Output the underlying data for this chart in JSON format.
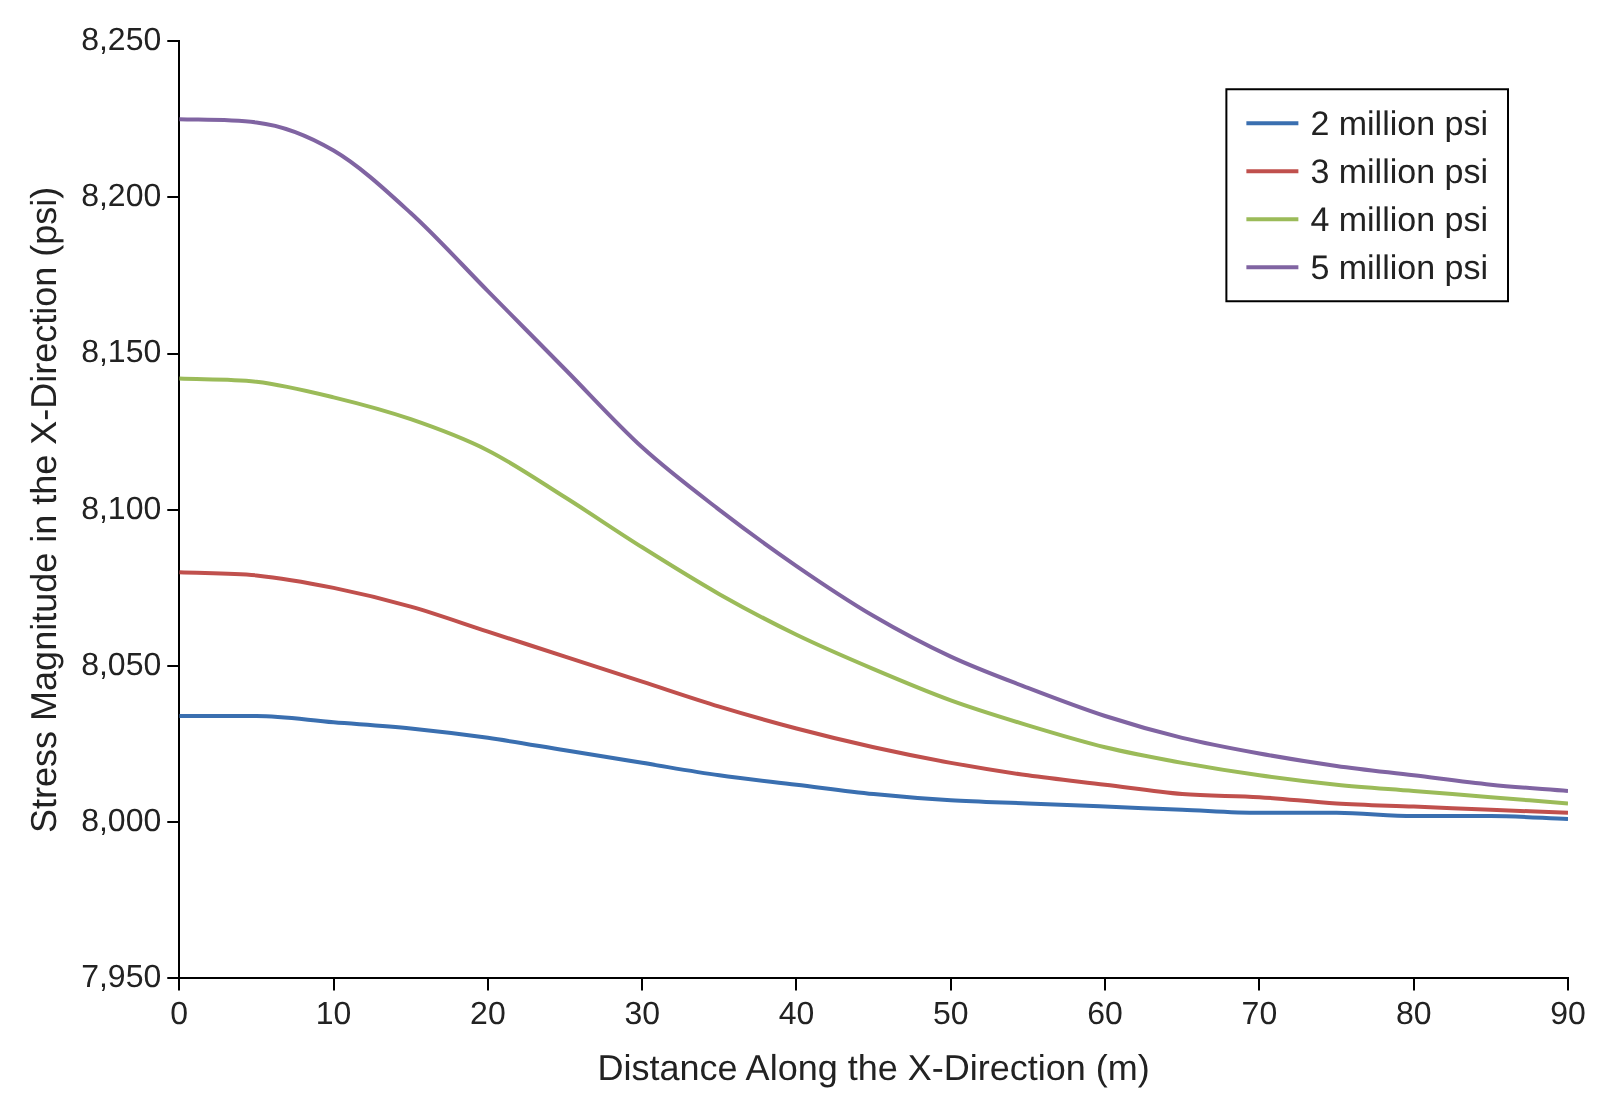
{
  "chart_data": {
    "type": "line",
    "xlabel": "Distance Along the X-Direction (m)",
    "ylabel": "Stress Magnitude in the X-Direction (psi)",
    "x": [
      0,
      5,
      10,
      15,
      20,
      25,
      30,
      35,
      40,
      45,
      50,
      55,
      60,
      65,
      70,
      75,
      80,
      85,
      90
    ],
    "series": [
      {
        "name": "2 million psi",
        "color": "#3a6fb0",
        "values": [
          8034,
          8034,
          8032,
          8030,
          8027,
          8023,
          8019,
          8015,
          8012,
          8009,
          8007,
          8006,
          8005,
          8004,
          8003,
          8003,
          8002,
          8002,
          8001
        ]
      },
      {
        "name": "3 million psi",
        "color": "#c0504d",
        "values": [
          8080,
          8079,
          8075,
          8069,
          8061,
          8053,
          8045,
          8037,
          8030,
          8024,
          8019,
          8015,
          8012,
          8009,
          8008,
          8006,
          8005,
          8004,
          8003
        ]
      },
      {
        "name": "4 million psi",
        "color": "#9bbb59",
        "values": [
          8142,
          8141,
          8136,
          8129,
          8119,
          8104,
          8088,
          8073,
          8060,
          8049,
          8039,
          8031,
          8024,
          8019,
          8015,
          8012,
          8010,
          8008,
          8006
        ]
      },
      {
        "name": "5 million psi",
        "color": "#8064a2",
        "values": [
          8225,
          8224,
          8215,
          8195,
          8170,
          8145,
          8120,
          8100,
          8082,
          8066,
          8053,
          8043,
          8034,
          8027,
          8022,
          8018,
          8015,
          8012,
          8010
        ]
      }
    ],
    "xlim": [
      0,
      90
    ],
    "xticks": [
      0,
      10,
      20,
      30,
      40,
      50,
      60,
      70,
      80,
      90
    ],
    "ylim": [
      7950,
      8250
    ],
    "yticks": [
      {
        "value": 7950,
        "label": "7,950"
      },
      {
        "value": 8000,
        "label": "8,000"
      },
      {
        "value": 8050,
        "label": "8,050"
      },
      {
        "value": 8100,
        "label": "8,100"
      },
      {
        "value": 8150,
        "label": "8,150"
      },
      {
        "value": 8200,
        "label": "8,200"
      },
      {
        "value": 8250,
        "label": "8,250"
      }
    ],
    "grid": false,
    "legend": "top right",
    "marker": "none",
    "line_style": "solid"
  }
}
